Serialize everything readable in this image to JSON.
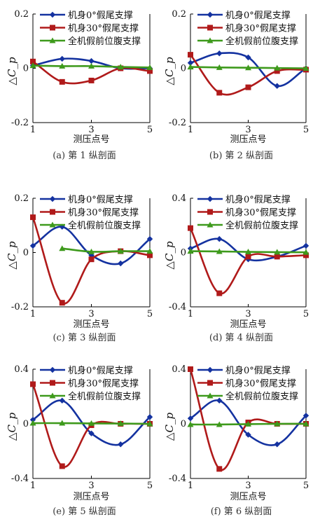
{
  "figure": {
    "ylabel": "△C_p",
    "xlabel": "测压点号"
  },
  "colors": {
    "series_0": "#1432a0",
    "series_30": "#b01a1a",
    "series_full": "#3e9a1c",
    "axis": "#000000"
  },
  "chart_data": [
    {
      "type": "line",
      "caption": "(a) 第 1 纵剖面",
      "xlabel": "测压点号",
      "ylabel": "△C_p",
      "x_ticks": [
        1,
        3,
        5
      ],
      "y_ticks": [
        -0.2,
        0,
        0.2
      ],
      "ylim": [
        -0.2,
        0.2
      ],
      "xlim": [
        1,
        5
      ],
      "legend_position": "top-right",
      "series": [
        {
          "name": "机身0°假尾支撑",
          "marker": "diamond",
          "x": [
            1,
            2,
            3,
            4,
            5
          ],
          "values": [
            0.01,
            0.035,
            0.027,
            0.0,
            0.0
          ]
        },
        {
          "name": "机身30°假尾支撑",
          "marker": "square",
          "x": [
            1,
            2,
            3,
            4,
            5
          ],
          "values": [
            0.025,
            -0.05,
            -0.045,
            0.0,
            -0.01
          ]
        },
        {
          "name": "全机假前位腹支撑",
          "marker": "triangle",
          "x": [
            1,
            2,
            3,
            4,
            5
          ],
          "values": [
            0.01,
            0.008,
            0.008,
            0.005,
            0.003
          ]
        }
      ]
    },
    {
      "type": "line",
      "caption": "(b) 第 2 纵剖面",
      "xlabel": "测压点号",
      "ylabel": "△C_p",
      "x_ticks": [
        1,
        3,
        5
      ],
      "y_ticks": [
        -0.2,
        0,
        0.2
      ],
      "ylim": [
        -0.2,
        0.2
      ],
      "xlim": [
        1,
        5
      ],
      "legend_position": "top-right",
      "series": [
        {
          "name": "机身0°假尾支撑",
          "marker": "diamond",
          "x": [
            1,
            2,
            3,
            4,
            5
          ],
          "values": [
            0.02,
            0.055,
            0.04,
            -0.065,
            0.0
          ]
        },
        {
          "name": "机身30°假尾支撑",
          "marker": "square",
          "x": [
            1,
            2,
            3,
            4,
            5
          ],
          "values": [
            0.05,
            -0.09,
            -0.07,
            -0.01,
            -0.005
          ]
        },
        {
          "name": "全机假前位腹支撑",
          "marker": "triangle",
          "x": [
            1,
            2,
            3,
            4,
            5
          ],
          "values": [
            0.005,
            0.003,
            0.002,
            0.001,
            0.0
          ]
        }
      ]
    },
    {
      "type": "line",
      "caption": "(c) 第 3 纵剖面",
      "xlabel": "测压点号",
      "ylabel": "△C_p",
      "x_ticks": [
        1,
        3,
        5
      ],
      "y_ticks": [
        -0.2,
        0,
        0.2
      ],
      "ylim": [
        -0.2,
        0.2
      ],
      "xlim": [
        1,
        5
      ],
      "legend_position": "top-right",
      "series": [
        {
          "name": "机身0°假尾支撑",
          "marker": "diamond",
          "x": [
            1,
            2,
            3,
            4,
            5
          ],
          "values": [
            0.025,
            0.095,
            -0.01,
            -0.04,
            0.05
          ]
        },
        {
          "name": "机身30°假尾支撑",
          "marker": "square",
          "x": [
            1,
            2,
            3,
            4,
            5
          ],
          "values": [
            0.13,
            -0.185,
            -0.025,
            0.005,
            -0.01
          ]
        },
        {
          "name": "全机假前位腹支撑",
          "marker": "triangle",
          "x": [
            2,
            3,
            4,
            5
          ],
          "values": [
            0.015,
            0.003,
            0.005,
            0.005
          ]
        }
      ]
    },
    {
      "type": "line",
      "caption": "(d) 第 4 纵剖面",
      "xlabel": "测压点号",
      "ylabel": "△C_p",
      "x_ticks": [
        1,
        3,
        5
      ],
      "y_ticks": [
        -0.4,
        0,
        0.4
      ],
      "ylim": [
        -0.4,
        0.4
      ],
      "xlim": [
        1,
        5
      ],
      "legend_position": "top-right",
      "series": [
        {
          "name": "机身0°假尾支撑",
          "marker": "diamond",
          "x": [
            1,
            2,
            3,
            4,
            5
          ],
          "values": [
            0.03,
            0.1,
            -0.05,
            -0.03,
            0.05
          ]
        },
        {
          "name": "机身30°假尾支撑",
          "marker": "square",
          "x": [
            1,
            2,
            3,
            4,
            5
          ],
          "values": [
            0.18,
            -0.3,
            -0.03,
            -0.03,
            -0.02
          ]
        },
        {
          "name": "全机假前位腹支撑",
          "marker": "triangle",
          "x": [
            1,
            2,
            3,
            4,
            5
          ],
          "values": [
            0.01,
            0.008,
            0.005,
            0.003,
            0.002
          ]
        }
      ]
    },
    {
      "type": "line",
      "caption": "(e) 第 5 纵剖面",
      "xlabel": "测压点号",
      "ylabel": "△C_p",
      "x_ticks": [
        1,
        3,
        5
      ],
      "y_ticks": [
        -0.4,
        0,
        0.4
      ],
      "ylim": [
        -0.4,
        0.4
      ],
      "xlim": [
        1,
        5
      ],
      "legend_position": "top-right",
      "series": [
        {
          "name": "机身0°假尾支撑",
          "marker": "diamond",
          "x": [
            1,
            2,
            3,
            4,
            5
          ],
          "values": [
            0.03,
            0.17,
            -0.07,
            -0.15,
            0.05
          ]
        },
        {
          "name": "机身30°假尾支撑",
          "marker": "square",
          "x": [
            1,
            2,
            3,
            4,
            5
          ],
          "values": [
            0.29,
            -0.31,
            -0.01,
            0.0,
            0.0
          ]
        },
        {
          "name": "全机假前位腹支撑",
          "marker": "triangle",
          "x": [
            1,
            2,
            3,
            4,
            5
          ],
          "values": [
            0.005,
            0.005,
            0.003,
            0.002,
            0.0
          ]
        }
      ]
    },
    {
      "type": "line",
      "caption": "(f) 第 6 纵剖面",
      "xlabel": "测压点号",
      "ylabel": "△C_p",
      "x_ticks": [
        1,
        3,
        5
      ],
      "y_ticks": [
        -0.4,
        0,
        0.4
      ],
      "ylim": [
        -0.4,
        0.4
      ],
      "xlim": [
        1,
        5
      ],
      "legend_position": "top-right",
      "series": [
        {
          "name": "机身0°假尾支撑",
          "marker": "diamond",
          "x": [
            1,
            2,
            3,
            4,
            5
          ],
          "values": [
            0.04,
            0.17,
            -0.08,
            -0.15,
            0.06
          ]
        },
        {
          "name": "机身30°假尾支撑",
          "marker": "square",
          "x": [
            1,
            2,
            3,
            4,
            5
          ],
          "values": [
            0.4,
            -0.33,
            0.01,
            0.0,
            0.0
          ]
        },
        {
          "name": "全机假前位腹支撑",
          "marker": "triangle",
          "x": [
            1,
            2,
            3,
            4,
            5
          ],
          "values": [
            -0.005,
            -0.005,
            -0.002,
            0.0,
            0.0
          ]
        }
      ]
    }
  ]
}
